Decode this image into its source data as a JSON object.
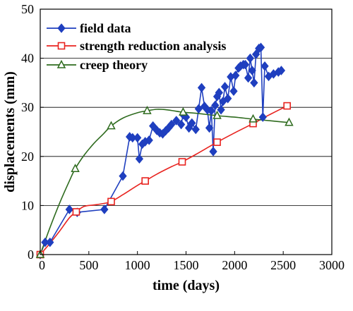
{
  "chart_data": {
    "type": "line",
    "xlabel": "time (days)",
    "ylabel": "displacements (mm)",
    "xlim": [
      0,
      3000
    ],
    "ylim": [
      0,
      50
    ],
    "xticks": [
      0,
      500,
      1000,
      1500,
      2000,
      2500,
      3000
    ],
    "yticks": [
      0,
      10,
      20,
      30,
      40,
      50
    ],
    "grid": "horizontal",
    "legend_position": "top-left",
    "series": [
      {
        "name": "field data",
        "color": "#1f3fbf",
        "marker": "diamond",
        "x": [
          0,
          50,
          100,
          300,
          380,
          660,
          850,
          920,
          950,
          1000,
          1020,
          1050,
          1080,
          1120,
          1160,
          1200,
          1230,
          1260,
          1290,
          1320,
          1350,
          1400,
          1450,
          1470,
          1500,
          1530,
          1560,
          1600,
          1630,
          1660,
          1690,
          1720,
          1740,
          1760,
          1780,
          1800,
          1820,
          1840,
          1860,
          1880,
          1900,
          1930,
          1960,
          1990,
          2010,
          2040,
          2060,
          2090,
          2110,
          2140,
          2160,
          2180,
          2200,
          2220,
          2250,
          2270,
          2290,
          2310,
          2350,
          2400,
          2450,
          2480
        ],
        "y": [
          0,
          2.5,
          2.5,
          9.2,
          8.6,
          9.2,
          16,
          24,
          23.8,
          23.8,
          19.5,
          22.5,
          23,
          23.3,
          26.2,
          25.3,
          24.8,
          24.6,
          25.2,
          25.8,
          26.5,
          27.3,
          26.5,
          28.5,
          28,
          25.8,
          26.8,
          25.5,
          29.7,
          34,
          30.2,
          29.5,
          25.8,
          29.3,
          21,
          30.4,
          32.2,
          33,
          29.5,
          31.2,
          34.2,
          31.8,
          36.2,
          33.3,
          36.5,
          38,
          38.4,
          38.7,
          38.7,
          36,
          40,
          37.5,
          35,
          40.8,
          42,
          42.2,
          28,
          38.4,
          36.3,
          36.8,
          37.2,
          37.5
        ]
      },
      {
        "name": "strength reduction analysis",
        "color": "#e8231f",
        "marker": "square",
        "x": [
          0,
          370,
          730,
          1080,
          1460,
          1820,
          2190,
          2540
        ],
        "y": [
          0,
          8.7,
          10.8,
          15,
          18.9,
          22.9,
          26.7,
          30.3
        ],
        "curve_x": [
          0,
          100,
          200,
          300,
          370,
          450,
          550,
          650,
          730,
          850,
          1000,
          1080,
          1200,
          1350,
          1460,
          1600,
          1820,
          2000,
          2190,
          2350,
          2540
        ],
        "curve_y": [
          0,
          2.3,
          4.8,
          7.5,
          8.7,
          9.8,
          10.1,
          10.4,
          10.8,
          12.2,
          14.1,
          15,
          16.4,
          17.9,
          18.9,
          20.4,
          22.9,
          24.8,
          26.7,
          28.4,
          30.3
        ]
      },
      {
        "name": "creep theory",
        "color": "#2e6b1e",
        "marker": "triangle",
        "x": [
          0,
          360,
          730,
          1100,
          1470,
          1820,
          2190,
          2560
        ],
        "y": [
          0,
          17.5,
          26.2,
          29.3,
          29,
          28.3,
          27.6,
          26.9
        ],
        "curve_x": [
          0,
          100,
          200,
          300,
          360,
          450,
          550,
          650,
          730,
          850,
          1000,
          1100,
          1200,
          1300,
          1470,
          1600,
          1820,
          2000,
          2190,
          2400,
          2560
        ],
        "curve_y": [
          0,
          5.5,
          10.5,
          15,
          17.5,
          20.2,
          22.6,
          24.6,
          26.2,
          27.8,
          28.9,
          29.3,
          29.6,
          29.5,
          29,
          28.8,
          28.3,
          28,
          27.6,
          27.2,
          26.9
        ]
      }
    ]
  }
}
